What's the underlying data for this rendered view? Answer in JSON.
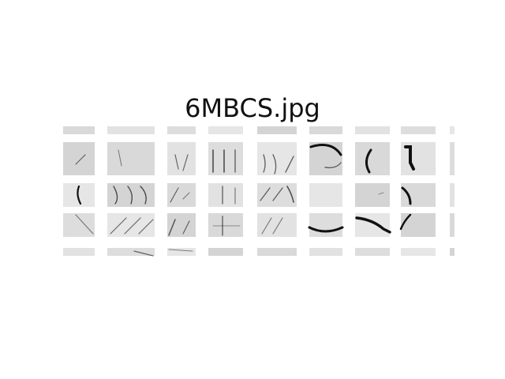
{
  "figure": {
    "title": "6MBCS.jpg",
    "tile_fill": "#dcdcdc",
    "ink_color": "#111111"
  }
}
